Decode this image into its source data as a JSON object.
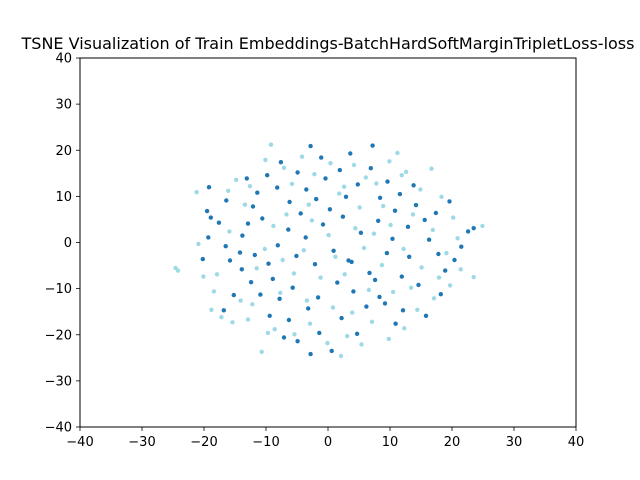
{
  "chart_data": {
    "type": "scatter",
    "title": "TSNE Visualization of Train Embeddings-BatchHardSoftMarginTripletLoss-loss",
    "xlabel": "",
    "ylabel": "",
    "xlim": [
      -40,
      40
    ],
    "ylim": [
      -40,
      40
    ],
    "xticks": [
      -40,
      -30,
      -20,
      -10,
      0,
      10,
      20,
      30,
      40
    ],
    "yticks": [
      -40,
      -30,
      -20,
      -10,
      0,
      10,
      20,
      30,
      40
    ],
    "grid": false,
    "colors": {
      "dark": "#1f77b4",
      "light": "#9edae5"
    },
    "series": [
      {
        "color": "#1f77b4",
        "points": [
          [
            -19.2,
            12.0
          ],
          [
            -19.5,
            6.8
          ],
          [
            -18.9,
            5.4
          ],
          [
            -17.6,
            4.3
          ],
          [
            -19.3,
            1.1
          ],
          [
            -16.5,
            -0.8
          ],
          [
            -15.8,
            -3.9
          ],
          [
            -14.2,
            -2.2
          ],
          [
            -13.8,
            1.5
          ],
          [
            -12.9,
            4.1
          ],
          [
            -12.1,
            7.8
          ],
          [
            -10.6,
            5.2
          ],
          [
            -11.4,
            10.8
          ],
          [
            -9.8,
            14.6
          ],
          [
            -8.2,
            11.9
          ],
          [
            -7.6,
            17.4
          ],
          [
            -6.2,
            8.8
          ],
          [
            -4.9,
            15.2
          ],
          [
            -3.5,
            11.5
          ],
          [
            -2.8,
            20.9
          ],
          [
            -1.1,
            18.4
          ],
          [
            -0.4,
            13.9
          ],
          [
            1.9,
            15.7
          ],
          [
            3.6,
            19.3
          ],
          [
            4.8,
            12.6
          ],
          [
            6.9,
            16.1
          ],
          [
            8.4,
            9.7
          ],
          [
            9.6,
            13.2
          ],
          [
            10.8,
            6.9
          ],
          [
            11.6,
            10.5
          ],
          [
            12.9,
            3.4
          ],
          [
            14.2,
            8.1
          ],
          [
            15.6,
            4.9
          ],
          [
            16.3,
            0.6
          ],
          [
            17.8,
            -2.5
          ],
          [
            18.9,
            -6.1
          ],
          [
            20.4,
            -3.8
          ],
          [
            21.5,
            -0.9
          ],
          [
            22.6,
            2.4
          ],
          [
            23.5,
            3.1
          ],
          [
            18.2,
            -11.2
          ],
          [
            15.8,
            -15.9
          ],
          [
            12.1,
            -14.7
          ],
          [
            10.9,
            -17.6
          ],
          [
            8.3,
            -11.8
          ],
          [
            6.2,
            -13.9
          ],
          [
            4.7,
            -19.8
          ],
          [
            2.2,
            -16.4
          ],
          [
            0.6,
            -23.5
          ],
          [
            -1.4,
            -19.6
          ],
          [
            -2.8,
            -24.2
          ],
          [
            -4.9,
            -21.4
          ],
          [
            -6.3,
            -16.8
          ],
          [
            -7.8,
            -12.2
          ],
          [
            -9.4,
            -15.9
          ],
          [
            -10.9,
            -11.3
          ],
          [
            -12.4,
            -8.6
          ],
          [
            -13.9,
            -5.8
          ],
          [
            -15.2,
            -11.4
          ],
          [
            -16.8,
            -14.7
          ],
          [
            -11.8,
            -2.7
          ],
          [
            -9.6,
            -4.6
          ],
          [
            -8.1,
            -0.6
          ],
          [
            -6.4,
            2.8
          ],
          [
            -5.1,
            -2.9
          ],
          [
            -3.6,
            1.1
          ],
          [
            -2.1,
            -4.7
          ],
          [
            -0.8,
            3.9
          ],
          [
            0.9,
            -1.8
          ],
          [
            2.4,
            5.6
          ],
          [
            3.8,
            -4.2
          ],
          [
            5.3,
            2.1
          ],
          [
            6.7,
            -6.6
          ],
          [
            8.1,
            4.7
          ],
          [
            9.5,
            -2.3
          ],
          [
            10.4,
            0.8
          ],
          [
            11.9,
            -7.4
          ],
          [
            13.1,
            -3.1
          ],
          [
            14.6,
            -9.2
          ],
          [
            13.8,
            12.4
          ],
          [
            7.2,
            21.0
          ],
          [
            -1.9,
            9.4
          ],
          [
            -4.4,
            6.3
          ],
          [
            0.3,
            7.2
          ],
          [
            2.9,
            9.9
          ],
          [
            -8.9,
            -7.9
          ],
          [
            -5.7,
            -9.8
          ],
          [
            -1.6,
            -11.9
          ],
          [
            1.5,
            -8.7
          ],
          [
            4.1,
            -10.6
          ],
          [
            7.6,
            -8.1
          ],
          [
            -3.2,
            -14.3
          ],
          [
            -7.1,
            -20.6
          ],
          [
            3.3,
            -3.9
          ],
          [
            9.2,
            -13.2
          ],
          [
            -13.1,
            13.9
          ],
          [
            -16.4,
            9.1
          ],
          [
            -20.2,
            -3.6
          ],
          [
            17.4,
            6.4
          ],
          [
            19.6,
            8.9
          ]
        ]
      },
      {
        "color": "#9edae5",
        "points": [
          [
            -24.6,
            -5.5
          ],
          [
            -24.2,
            -6.1
          ],
          [
            -21.2,
            10.9
          ],
          [
            -20.9,
            -0.3
          ],
          [
            -20.1,
            -7.4
          ],
          [
            -18.4,
            -10.6
          ],
          [
            -17.2,
            -16.2
          ],
          [
            -15.4,
            -17.3
          ],
          [
            -14.8,
            13.6
          ],
          [
            -12.6,
            12.2
          ],
          [
            -10.1,
            17.9
          ],
          [
            -9.2,
            21.2
          ],
          [
            -7.1,
            16.2
          ],
          [
            -5.8,
            12.7
          ],
          [
            -4.2,
            18.6
          ],
          [
            -2.2,
            14.8
          ],
          [
            0.4,
            17.2
          ],
          [
            2.6,
            12.1
          ],
          [
            4.2,
            16.8
          ],
          [
            6.1,
            14.1
          ],
          [
            7.8,
            12.8
          ],
          [
            9.9,
            17.6
          ],
          [
            11.2,
            19.4
          ],
          [
            12.6,
            15.3
          ],
          [
            14.9,
            11.5
          ],
          [
            16.7,
            16.0
          ],
          [
            18.3,
            9.9
          ],
          [
            20.2,
            5.4
          ],
          [
            20.9,
            0.9
          ],
          [
            21.4,
            -5.8
          ],
          [
            19.7,
            -9.3
          ],
          [
            17.1,
            -12.1
          ],
          [
            14.4,
            -14.6
          ],
          [
            12.3,
            -18.6
          ],
          [
            9.8,
            -20.9
          ],
          [
            7.1,
            -17.2
          ],
          [
            5.4,
            -22.1
          ],
          [
            3.1,
            -20.3
          ],
          [
            -0.1,
            -21.8
          ],
          [
            -2.9,
            -17.6
          ],
          [
            -5.4,
            -19.9
          ],
          [
            -8.6,
            -18.8
          ],
          [
            -10.7,
            -23.7
          ],
          [
            -12.9,
            -16.7
          ],
          [
            -14.1,
            -12.6
          ],
          [
            -11.5,
            -5.6
          ],
          [
            -10.2,
            -1.4
          ],
          [
            -8.8,
            3.6
          ],
          [
            -7.3,
            -3.8
          ],
          [
            -5.5,
            -6.7
          ],
          [
            -3.9,
            -1.7
          ],
          [
            -2.6,
            4.8
          ],
          [
            -1.2,
            -7.6
          ],
          [
            0.1,
            1.6
          ],
          [
            1.2,
            -3.1
          ],
          [
            2.7,
            -6.9
          ],
          [
            4.4,
            3.1
          ],
          [
            5.8,
            -1.2
          ],
          [
            7.4,
            1.9
          ],
          [
            8.7,
            -4.9
          ],
          [
            10.1,
            3.8
          ],
          [
            12.2,
            -1.4
          ],
          [
            13.7,
            6.1
          ],
          [
            15.1,
            -5.4
          ],
          [
            16.9,
            2.7
          ],
          [
            -6.7,
            6.1
          ],
          [
            -3.1,
            8.2
          ],
          [
            1.8,
            10.6
          ],
          [
            5.1,
            7.6
          ],
          [
            8.9,
            7.9
          ],
          [
            -15.9,
            2.4
          ],
          [
            -17.9,
            -6.9
          ],
          [
            -12.2,
            -13.4
          ],
          [
            -7.7,
            -10.9
          ],
          [
            -3.4,
            -12.6
          ],
          [
            0.8,
            -14.1
          ],
          [
            3.9,
            -15.2
          ],
          [
            6.6,
            -10.3
          ],
          [
            10.5,
            -10.7
          ],
          [
            13.4,
            -9.8
          ],
          [
            23.5,
            -7.5
          ],
          [
            24.9,
            3.6
          ],
          [
            -18.8,
            -14.6
          ],
          [
            -16.1,
            11.2
          ],
          [
            11.9,
            14.6
          ],
          [
            -9.7,
            -19.6
          ],
          [
            2.1,
            -24.6
          ],
          [
            17.9,
            -7.6
          ],
          [
            19.1,
            -2.3
          ],
          [
            -13.4,
            8.2
          ]
        ]
      }
    ]
  }
}
